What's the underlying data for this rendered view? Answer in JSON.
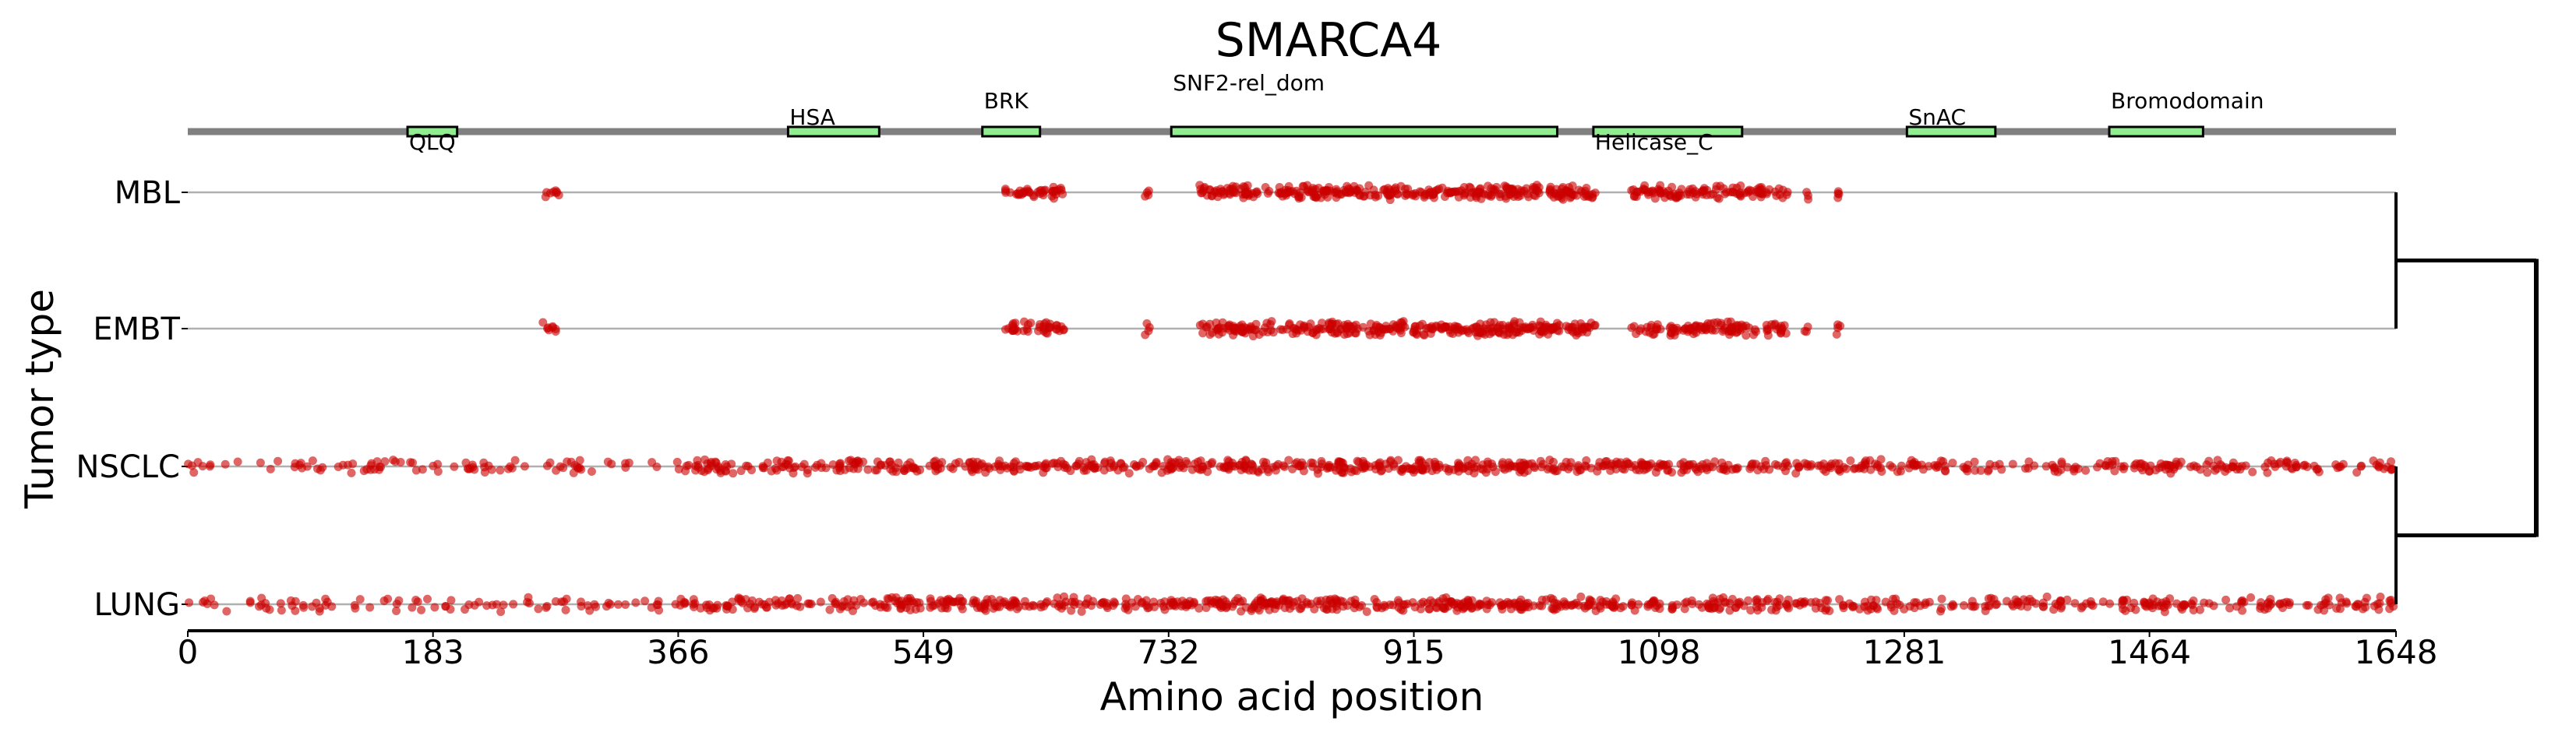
{
  "chart_data": {
    "type": "scatter",
    "title": "SMARCA4",
    "xlabel": "Amino acid position",
    "ylabel": "Tumor type",
    "xlim": [
      0,
      1648
    ],
    "xticks": [
      "0",
      "183",
      "366",
      "549",
      "732",
      "915",
      "1098",
      "1281",
      "1464",
      "1648"
    ],
    "categories": [
      "MBL",
      "EMBT",
      "NSCLC",
      "LUNG"
    ],
    "point_color": "#cc0000",
    "domain_color": "#90ee90",
    "protein_length": 1648,
    "domains": [
      {
        "name": "QLQ",
        "start": 164,
        "end": 201,
        "label_pos": "below"
      },
      {
        "name": "HSA",
        "start": 448,
        "end": 516,
        "label_pos": "above-1"
      },
      {
        "name": "BRK",
        "start": 593,
        "end": 636,
        "label_pos": "above-2"
      },
      {
        "name": "SNF2-rel_dom",
        "start": 734,
        "end": 1022,
        "label_pos": "above-3"
      },
      {
        "name": "Helicase_C",
        "start": 1049,
        "end": 1160,
        "label_pos": "below"
      },
      {
        "name": "SnAC",
        "start": 1283,
        "end": 1349,
        "label_pos": "above-1"
      },
      {
        "name": "Bromodomain",
        "start": 1434,
        "end": 1504,
        "label_pos": "above-2"
      }
    ],
    "series": [
      {
        "name": "MBL",
        "segments": [
          [
            265,
            277,
            8
          ],
          [
            610,
            654,
            40
          ],
          [
            714,
            718,
            4
          ],
          [
            755,
            1051,
            320
          ],
          [
            1077,
            1194,
            110
          ],
          [
            1206,
            1210,
            3
          ],
          [
            1230,
            1234,
            4
          ]
        ]
      },
      {
        "name": "EMBT",
        "segments": [
          [
            265,
            277,
            8
          ],
          [
            610,
            654,
            40
          ],
          [
            714,
            718,
            4
          ],
          [
            755,
            1051,
            320
          ],
          [
            1077,
            1194,
            110
          ],
          [
            1206,
            1210,
            3
          ],
          [
            1230,
            1234,
            4
          ]
        ]
      },
      {
        "name": "NSCLC",
        "segments": [
          [
            0,
            180,
            45
          ],
          [
            180,
            366,
            45
          ],
          [
            366,
            549,
            110
          ],
          [
            549,
            732,
            120
          ],
          [
            732,
            915,
            150
          ],
          [
            915,
            1098,
            150
          ],
          [
            1098,
            1281,
            110
          ],
          [
            1281,
            1464,
            80
          ],
          [
            1464,
            1648,
            90
          ]
        ]
      },
      {
        "name": "LUNG",
        "segments": [
          [
            0,
            180,
            45
          ],
          [
            180,
            366,
            45
          ],
          [
            366,
            549,
            110
          ],
          [
            549,
            732,
            120
          ],
          [
            732,
            915,
            150
          ],
          [
            915,
            1098,
            150
          ],
          [
            1098,
            1281,
            110
          ],
          [
            1281,
            1464,
            80
          ],
          [
            1464,
            1648,
            90
          ]
        ]
      }
    ],
    "dendrogram": {
      "clusters": [
        [
          "MBL",
          "EMBT"
        ],
        [
          "NSCLC",
          "LUNG"
        ]
      ]
    },
    "grid": false
  }
}
